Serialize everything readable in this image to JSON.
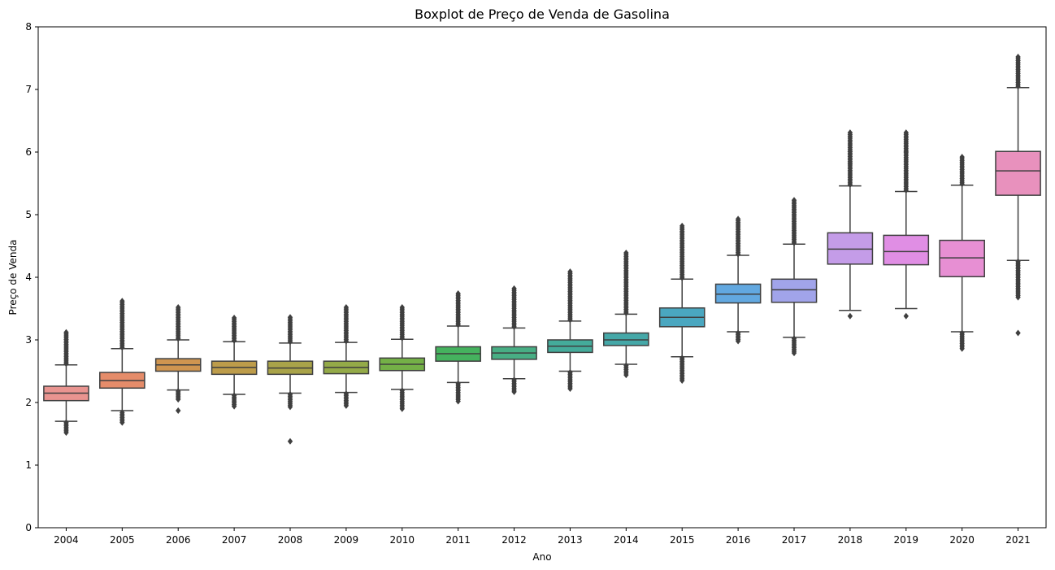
{
  "chart_data": {
    "type": "boxplot",
    "title": "Boxplot de Preço de Venda de Gasolina",
    "xlabel": "Ano",
    "ylabel": "Preço de Venda",
    "ylim": [
      0,
      8
    ],
    "yticks": [
      "0",
      "1",
      "2",
      "3",
      "4",
      "5",
      "6",
      "7",
      "8"
    ],
    "grid": false,
    "categories": [
      "2004",
      "2005",
      "2006",
      "2007",
      "2008",
      "2009",
      "2010",
      "2011",
      "2012",
      "2013",
      "2014",
      "2015",
      "2016",
      "2017",
      "2018",
      "2019",
      "2020",
      "2021"
    ],
    "colors": [
      "#e99490",
      "#e58c6a",
      "#cf9550",
      "#bd9c4a",
      "#a9a349",
      "#94aa48",
      "#74b047",
      "#45b25e",
      "#48ae84",
      "#44ab9a",
      "#45a8a8",
      "#4aa7c0",
      "#62a8e0",
      "#a1a4ea",
      "#c49ce8",
      "#e08ee4",
      "#e78fd3",
      "#e891bd"
    ],
    "boxes": [
      {
        "year": "2004",
        "q1": 2.03,
        "median": 2.15,
        "q3": 2.26,
        "whisker_low": 1.7,
        "whisker_high": 2.6,
        "outliers_low": [
          1.52,
          1.68
        ],
        "outliers_high": [
          2.62,
          3.12
        ]
      },
      {
        "year": "2005",
        "q1": 2.23,
        "median": 2.35,
        "q3": 2.48,
        "whisker_low": 1.87,
        "whisker_high": 2.86,
        "outliers_low": [
          1.68,
          1.84
        ],
        "outliers_high": [
          2.88,
          3.62
        ]
      },
      {
        "year": "2006",
        "q1": 2.5,
        "median": 2.6,
        "q3": 2.7,
        "whisker_low": 2.2,
        "whisker_high": 3.0,
        "outliers_low": [
          1.87,
          2.05,
          2.18
        ],
        "outliers_high": [
          3.02,
          3.52
        ]
      },
      {
        "year": "2007",
        "q1": 2.45,
        "median": 2.56,
        "q3": 2.66,
        "whisker_low": 2.13,
        "whisker_high": 2.97,
        "outliers_low": [
          1.94,
          2.11
        ],
        "outliers_high": [
          2.99,
          3.35
        ]
      },
      {
        "year": "2008",
        "q1": 2.45,
        "median": 2.55,
        "q3": 2.66,
        "whisker_low": 2.15,
        "whisker_high": 2.95,
        "outliers_low": [
          1.38,
          1.93,
          2.13
        ],
        "outliers_high": [
          2.97,
          3.36
        ]
      },
      {
        "year": "2009",
        "q1": 2.46,
        "median": 2.56,
        "q3": 2.66,
        "whisker_low": 2.16,
        "whisker_high": 2.96,
        "outliers_low": [
          1.95,
          2.14
        ],
        "outliers_high": [
          2.98,
          3.52
        ]
      },
      {
        "year": "2010",
        "q1": 2.51,
        "median": 2.61,
        "q3": 2.71,
        "whisker_low": 2.21,
        "whisker_high": 3.01,
        "outliers_low": [
          1.9,
          2.19
        ],
        "outliers_high": [
          3.03,
          3.52
        ]
      },
      {
        "year": "2011",
        "q1": 2.66,
        "median": 2.78,
        "q3": 2.89,
        "whisker_low": 2.32,
        "whisker_high": 3.22,
        "outliers_low": [
          2.02,
          2.3
        ],
        "outliers_high": [
          3.24,
          3.74
        ]
      },
      {
        "year": "2012",
        "q1": 2.69,
        "median": 2.79,
        "q3": 2.89,
        "whisker_low": 2.38,
        "whisker_high": 3.19,
        "outliers_low": [
          2.17,
          2.36
        ],
        "outliers_high": [
          3.21,
          3.82
        ]
      },
      {
        "year": "2013",
        "q1": 2.8,
        "median": 2.9,
        "q3": 3.0,
        "whisker_low": 2.5,
        "whisker_high": 3.3,
        "outliers_low": [
          2.22,
          2.48
        ],
        "outliers_high": [
          3.32,
          4.09
        ]
      },
      {
        "year": "2014",
        "q1": 2.91,
        "median": 3.0,
        "q3": 3.11,
        "whisker_low": 2.61,
        "whisker_high": 3.41,
        "outliers_low": [
          2.44,
          2.59
        ],
        "outliers_high": [
          3.43,
          4.39
        ]
      },
      {
        "year": "2015",
        "q1": 3.21,
        "median": 3.36,
        "q3": 3.51,
        "whisker_low": 2.73,
        "whisker_high": 3.97,
        "outliers_low": [
          2.35,
          2.71
        ],
        "outliers_high": [
          3.99,
          4.82
        ]
      },
      {
        "year": "2016",
        "q1": 3.59,
        "median": 3.73,
        "q3": 3.89,
        "whisker_low": 3.13,
        "whisker_high": 4.35,
        "outliers_low": [
          2.98,
          3.11
        ],
        "outliers_high": [
          4.37,
          4.93
        ]
      },
      {
        "year": "2017",
        "q1": 3.6,
        "median": 3.8,
        "q3": 3.97,
        "whisker_low": 3.04,
        "whisker_high": 4.53,
        "outliers_low": [
          2.79,
          3.02
        ],
        "outliers_high": [
          4.55,
          5.23
        ]
      },
      {
        "year": "2018",
        "q1": 4.21,
        "median": 4.45,
        "q3": 4.71,
        "whisker_low": 3.47,
        "whisker_high": 5.46,
        "outliers_low": [
          3.38
        ],
        "outliers_high": [
          5.48,
          5.82,
          6.01,
          6.31
        ]
      },
      {
        "year": "2019",
        "q1": 4.2,
        "median": 4.41,
        "q3": 4.67,
        "whisker_low": 3.5,
        "whisker_high": 5.37,
        "outliers_low": [
          3.38
        ],
        "outliers_high": [
          5.39,
          6.0,
          6.31
        ]
      },
      {
        "year": "2020",
        "q1": 4.01,
        "median": 4.31,
        "q3": 4.59,
        "whisker_low": 3.13,
        "whisker_high": 5.47,
        "outliers_low": [
          2.86,
          3.11
        ],
        "outliers_high": [
          5.49,
          5.92
        ]
      },
      {
        "year": "2021",
        "q1": 5.31,
        "median": 5.7,
        "q3": 6.01,
        "whisker_low": 4.27,
        "whisker_high": 7.03,
        "outliers_low": [
          3.11,
          3.68,
          4.25
        ],
        "outliers_high": [
          7.05,
          7.52
        ]
      }
    ]
  }
}
